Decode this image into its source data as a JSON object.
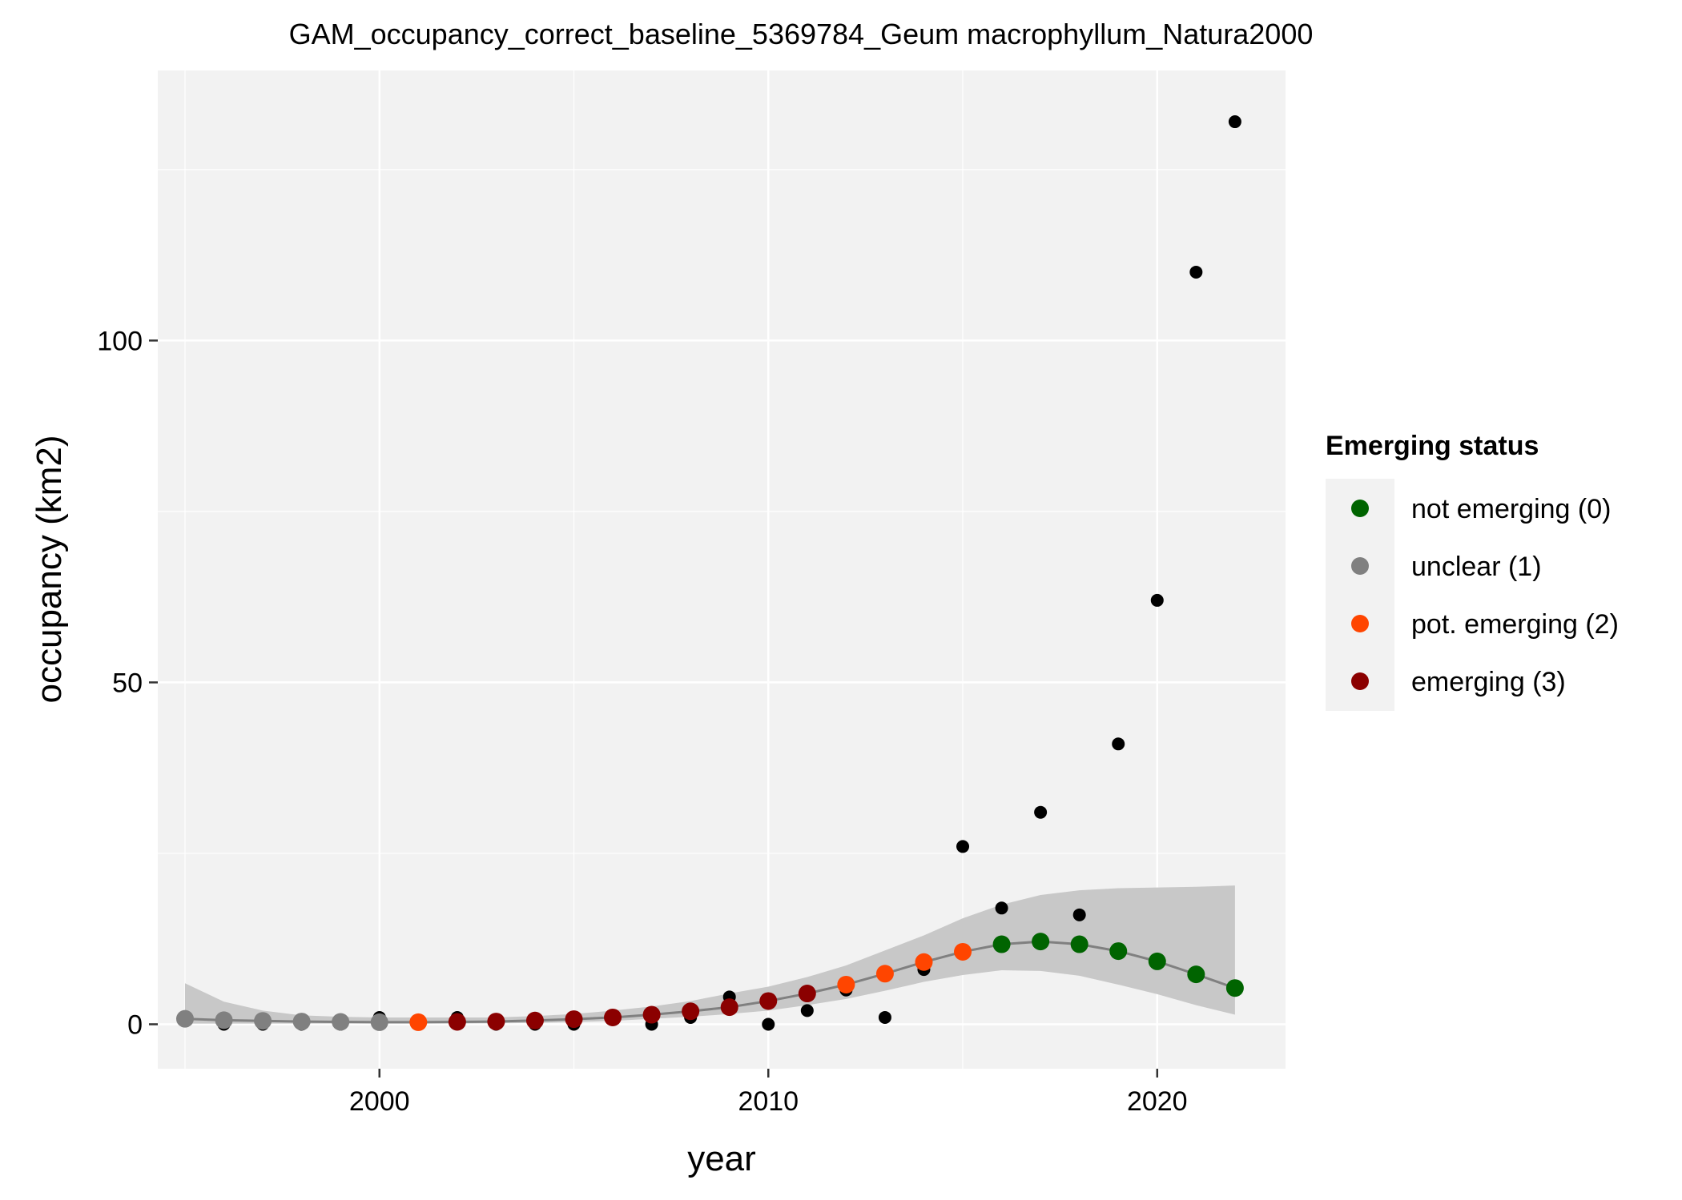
{
  "chart_data": {
    "type": "scatter",
    "title": "GAM_occupancy_correct_baseline_5369784_Geum macrophyllum_Natura2000",
    "xlabel": "year",
    "ylabel": "occupancy (km2)",
    "xlim": [
      1994.3,
      2023.3
    ],
    "ylim": [
      -6.5,
      139.5
    ],
    "x_ticks": [
      2000,
      2010,
      2020
    ],
    "y_ticks": [
      0,
      50,
      100
    ],
    "x_minor": [
      1995,
      2005,
      2015
    ],
    "y_minor": [
      25,
      75,
      125
    ],
    "grid": true,
    "background": "#f2f2f2",
    "legend": {
      "title": "Emerging status",
      "placement": "right",
      "entries": [
        {
          "label": "not emerging (0)",
          "color": "#006400"
        },
        {
          "label": "unclear (1)",
          "color": "#808080"
        },
        {
          "label": "pot. emerging (2)",
          "color": "#ff4500"
        },
        {
          "label": "emerging (3)",
          "color": "#8b0000"
        }
      ]
    },
    "observed": {
      "color": "#000000",
      "points": [
        {
          "x": 1995,
          "y": 1
        },
        {
          "x": 1996,
          "y": 0
        },
        {
          "x": 1997,
          "y": 0
        },
        {
          "x": 1998,
          "y": 0
        },
        {
          "x": 1999,
          "y": 0
        },
        {
          "x": 2000,
          "y": 1
        },
        {
          "x": 2001,
          "y": 0
        },
        {
          "x": 2002,
          "y": 1
        },
        {
          "x": 2003,
          "y": 0
        },
        {
          "x": 2004,
          "y": 0
        },
        {
          "x": 2005,
          "y": 0
        },
        {
          "x": 2006,
          "y": 1
        },
        {
          "x": 2007,
          "y": 0
        },
        {
          "x": 2008,
          "y": 1
        },
        {
          "x": 2009,
          "y": 4
        },
        {
          "x": 2010,
          "y": 0
        },
        {
          "x": 2011,
          "y": 2
        },
        {
          "x": 2012,
          "y": 5
        },
        {
          "x": 2013,
          "y": 1
        },
        {
          "x": 2014,
          "y": 8
        },
        {
          "x": 2015,
          "y": 26
        },
        {
          "x": 2016,
          "y": 17
        },
        {
          "x": 2017,
          "y": 31
        },
        {
          "x": 2018,
          "y": 16
        },
        {
          "x": 2019,
          "y": 41
        },
        {
          "x": 2020,
          "y": 62
        },
        {
          "x": 2021,
          "y": 110
        },
        {
          "x": 2022,
          "y": 132
        }
      ]
    },
    "gam_fit": {
      "line_color": "#808080",
      "band_color": "#c8c8c8",
      "points": [
        {
          "x": 1995,
          "y": 0.8,
          "lower": 0.1,
          "upper": 6.0,
          "status": 1
        },
        {
          "x": 1996,
          "y": 0.6,
          "lower": 0.1,
          "upper": 3.3,
          "status": 1
        },
        {
          "x": 1997,
          "y": 0.5,
          "lower": 0.1,
          "upper": 2.0,
          "status": 1
        },
        {
          "x": 1998,
          "y": 0.4,
          "lower": 0.1,
          "upper": 1.3,
          "status": 1
        },
        {
          "x": 1999,
          "y": 0.35,
          "lower": 0.1,
          "upper": 1.1,
          "status": 1
        },
        {
          "x": 2000,
          "y": 0.3,
          "lower": 0.1,
          "upper": 1.0,
          "status": 1
        },
        {
          "x": 2001,
          "y": 0.3,
          "lower": 0.1,
          "upper": 1.0,
          "status": 2
        },
        {
          "x": 2002,
          "y": 0.35,
          "lower": 0.1,
          "upper": 1.0,
          "status": 3
        },
        {
          "x": 2003,
          "y": 0.4,
          "lower": 0.15,
          "upper": 1.0,
          "status": 3
        },
        {
          "x": 2004,
          "y": 0.55,
          "lower": 0.2,
          "upper": 1.2,
          "status": 3
        },
        {
          "x": 2005,
          "y": 0.75,
          "lower": 0.3,
          "upper": 1.5,
          "status": 3
        },
        {
          "x": 2006,
          "y": 1.0,
          "lower": 0.5,
          "upper": 2.0,
          "status": 3
        },
        {
          "x": 2007,
          "y": 1.4,
          "lower": 0.8,
          "upper": 2.6,
          "status": 3
        },
        {
          "x": 2008,
          "y": 1.9,
          "lower": 1.1,
          "upper": 3.4,
          "status": 3
        },
        {
          "x": 2009,
          "y": 2.5,
          "lower": 1.5,
          "upper": 4.5,
          "status": 3
        },
        {
          "x": 2010,
          "y": 3.4,
          "lower": 2.0,
          "upper": 5.5,
          "status": 3
        },
        {
          "x": 2011,
          "y": 4.5,
          "lower": 2.8,
          "upper": 6.9,
          "status": 3
        },
        {
          "x": 2012,
          "y": 5.8,
          "lower": 3.7,
          "upper": 8.6,
          "status": 2
        },
        {
          "x": 2013,
          "y": 7.4,
          "lower": 4.9,
          "upper": 10.8,
          "status": 2
        },
        {
          "x": 2014,
          "y": 9.1,
          "lower": 6.2,
          "upper": 13.0,
          "status": 2
        },
        {
          "x": 2015,
          "y": 10.6,
          "lower": 7.2,
          "upper": 15.5,
          "status": 2
        },
        {
          "x": 2016,
          "y": 11.7,
          "lower": 7.9,
          "upper": 17.5,
          "status": 0
        },
        {
          "x": 2017,
          "y": 12.1,
          "lower": 7.8,
          "upper": 18.9,
          "status": 0
        },
        {
          "x": 2018,
          "y": 11.7,
          "lower": 7.1,
          "upper": 19.6,
          "status": 0
        },
        {
          "x": 2019,
          "y": 10.7,
          "lower": 5.8,
          "upper": 19.9,
          "status": 0
        },
        {
          "x": 2020,
          "y": 9.2,
          "lower": 4.4,
          "upper": 20.0,
          "status": 0
        },
        {
          "x": 2021,
          "y": 7.3,
          "lower": 2.8,
          "upper": 20.1,
          "status": 0
        },
        {
          "x": 2022,
          "y": 5.3,
          "lower": 1.4,
          "upper": 20.3,
          "status": 0
        }
      ]
    }
  }
}
